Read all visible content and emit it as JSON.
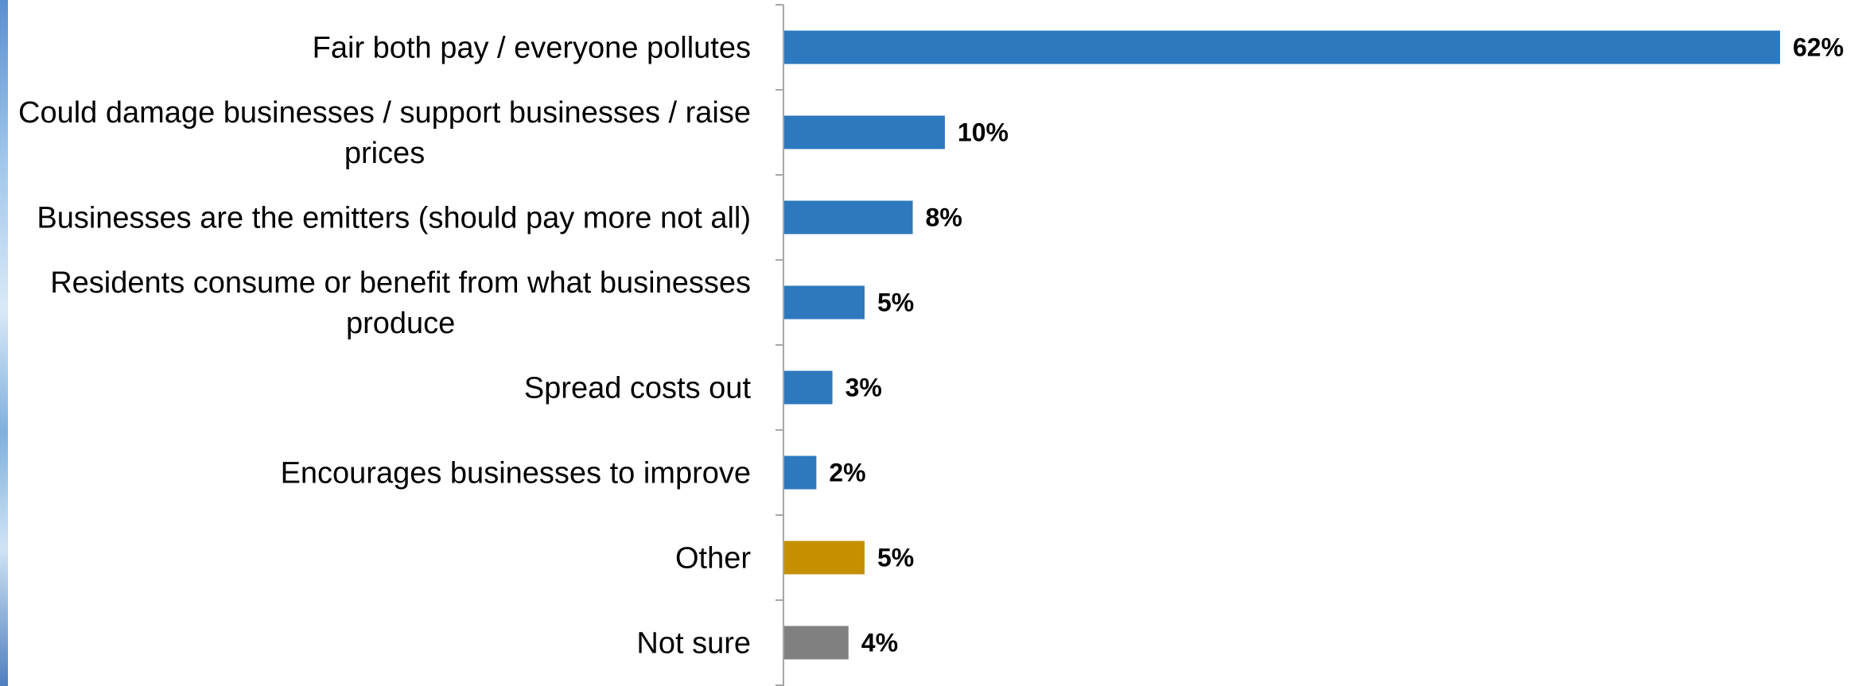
{
  "colors": {
    "primary": "#2e78bd",
    "other": "#c49000",
    "not_sure": "#808080",
    "axis": "#a6a6a6"
  },
  "chart_data": {
    "type": "bar",
    "orientation": "horizontal",
    "categories": [
      [
        "Fair both pay / everyone pollutes"
      ],
      [
        "Could damage businesses / support businesses / raise",
        "prices"
      ],
      [
        "Businesses are the emitters (should pay more not all)"
      ],
      [
        "Residents consume or benefit from what businesses",
        "produce"
      ],
      [
        "Spread costs out"
      ],
      [
        "Encourages businesses to improve"
      ],
      [
        "Other"
      ],
      [
        "Not sure"
      ]
    ],
    "values": [
      62,
      10,
      8,
      5,
      3,
      2,
      5,
      4
    ],
    "value_labels": [
      "62%",
      "10%",
      "8%",
      "5%",
      "3%",
      "2%",
      "5%",
      "4%"
    ],
    "bar_colors": [
      "primary",
      "primary",
      "primary",
      "primary",
      "primary",
      "primary",
      "other",
      "not_sure"
    ],
    "xlim": [
      0,
      62
    ],
    "grid": false,
    "legend": "none"
  }
}
